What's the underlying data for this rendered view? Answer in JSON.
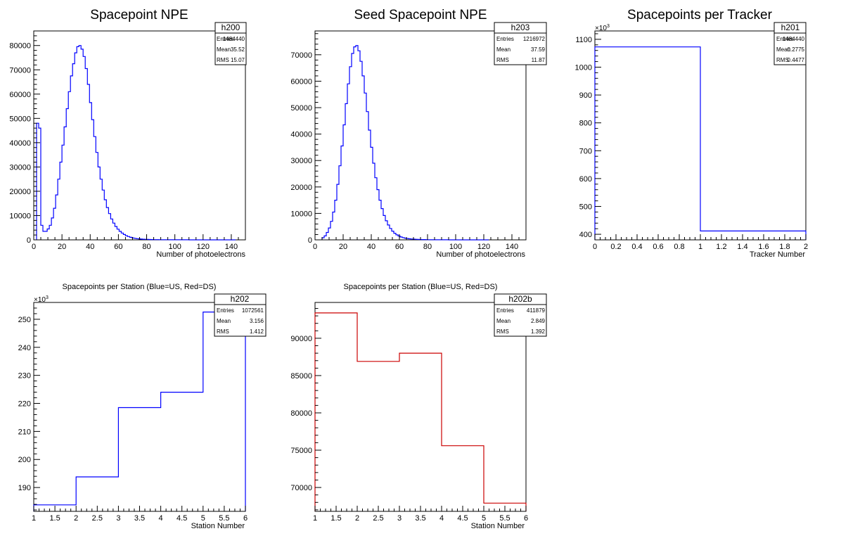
{
  "canvas_background": "#ffffff",
  "chart_data": [
    {
      "type": "bar",
      "style": "step-histogram",
      "title": "Spacepoint NPE",
      "title_size": "large",
      "xlabel": "Number of photoelectrons",
      "ylabel": "",
      "color": "#0000ff",
      "xlim": [
        0,
        150
      ],
      "ylim": [
        0,
        86000
      ],
      "y_exponent": null,
      "grid": false,
      "legend_position": "top-right",
      "x_ticks": [
        0,
        20,
        40,
        60,
        80,
        100,
        120,
        140
      ],
      "x_tick_labels": [
        "0",
        "20",
        "40",
        "60",
        "80",
        "100",
        "120",
        "140"
      ],
      "y_ticks": [
        0,
        10000,
        20000,
        30000,
        40000,
        50000,
        60000,
        70000,
        80000
      ],
      "y_tick_labels": [
        "0",
        "10000",
        "20000",
        "30000",
        "40000",
        "50000",
        "60000",
        "70000",
        "80000"
      ],
      "bin_edges_start": 2,
      "bin_width": 1.5,
      "values": [
        48000,
        46000,
        6000,
        3500,
        3500,
        4500,
        6000,
        9000,
        13000,
        18500,
        25000,
        32000,
        39000,
        46500,
        54000,
        61000,
        67500,
        72500,
        77000,
        79500,
        80000,
        78500,
        75500,
        70500,
        64000,
        56500,
        49500,
        42500,
        36000,
        30000,
        25000,
        20500,
        16500,
        13300,
        10800,
        8600,
        6900,
        5500,
        4400,
        3500,
        2800,
        2200,
        1700,
        1350,
        1050,
        800,
        640,
        500,
        400,
        320,
        260,
        220,
        180,
        150,
        120,
        100,
        90,
        80,
        70,
        60,
        55,
        50,
        45,
        40,
        35,
        30,
        28,
        25,
        22,
        20,
        18,
        16,
        14,
        12,
        11,
        10,
        9,
        8,
        7,
        6,
        5,
        5,
        4,
        4,
        3,
        3,
        2,
        2,
        2,
        2,
        1,
        1,
        1,
        1
      ],
      "stats": {
        "name": "h200",
        "rows": [
          {
            "label": "Entries",
            "value": "1484440"
          },
          {
            "label": "Mean",
            "value": "35.52"
          },
          {
            "label": "RMS",
            "value": "15.07"
          }
        ]
      }
    },
    {
      "type": "bar",
      "style": "step-histogram",
      "title": "Seed Spacepoint NPE",
      "title_size": "large",
      "xlabel": "Number of photoelectrons",
      "ylabel": "",
      "color": "#0000ff",
      "xlim": [
        0,
        150
      ],
      "ylim": [
        0,
        79000
      ],
      "y_exponent": null,
      "grid": false,
      "legend_position": "top-right",
      "x_ticks": [
        0,
        20,
        40,
        60,
        80,
        100,
        120,
        140
      ],
      "x_tick_labels": [
        "0",
        "20",
        "40",
        "60",
        "80",
        "100",
        "120",
        "140"
      ],
      "y_ticks": [
        0,
        10000,
        20000,
        30000,
        40000,
        50000,
        60000,
        70000
      ],
      "y_tick_labels": [
        "0",
        "10000",
        "20000",
        "30000",
        "40000",
        "50000",
        "60000",
        "70000"
      ],
      "bin_edges_start": 5,
      "bin_width": 1.5,
      "values": [
        800,
        1500,
        2800,
        4500,
        7000,
        10500,
        15000,
        21000,
        28000,
        35500,
        43500,
        51500,
        59000,
        65500,
        70500,
        73000,
        73500,
        71500,
        67500,
        62000,
        55500,
        48500,
        41500,
        35000,
        29000,
        23500,
        19000,
        15000,
        11800,
        9200,
        7200,
        5600,
        4300,
        3300,
        2500,
        1900,
        1450,
        1100,
        850,
        650,
        500,
        400,
        320,
        260,
        210,
        170,
        140,
        115,
        95,
        80,
        65,
        55,
        45,
        38,
        32,
        27,
        23,
        19,
        16,
        14,
        12,
        10,
        9,
        8,
        7,
        6,
        5,
        4,
        4,
        3,
        3,
        2,
        2,
        2,
        1,
        1,
        1,
        1,
        1
      ],
      "stats": {
        "name": "h203",
        "rows": [
          {
            "label": "Entries",
            "value": "1216972"
          },
          {
            "label": "Mean",
            "value": "37.59"
          },
          {
            "label": "RMS",
            "value": "11.87"
          }
        ]
      }
    },
    {
      "type": "bar",
      "style": "step-histogram",
      "title": "Spacepoints per Tracker",
      "title_size": "large",
      "xlabel": "Tracker Number",
      "ylabel": "",
      "color": "#0000ff",
      "xlim": [
        0,
        2
      ],
      "ylim": [
        380,
        1130
      ],
      "y_exponent": "10^3",
      "grid": false,
      "legend_position": "top-right",
      "x_ticks": [
        0,
        0.2,
        0.4,
        0.6,
        0.8,
        1,
        1.2,
        1.4,
        1.6,
        1.8,
        2
      ],
      "x_tick_labels": [
        "0",
        "0.2",
        "0.4",
        "0.6",
        "0.8",
        "1",
        "1.2",
        "1.4",
        "1.6",
        "1.8",
        "2"
      ],
      "y_ticks": [
        400,
        500,
        600,
        700,
        800,
        900,
        1000,
        1100
      ],
      "y_tick_labels": [
        "400",
        "500",
        "600",
        "700",
        "800",
        "900",
        "1000",
        "1100"
      ],
      "bin_edges": [
        0,
        1,
        2
      ],
      "values": [
        1072.561,
        411.879
      ],
      "stats": {
        "name": "h201",
        "rows": [
          {
            "label": "Entries",
            "value": "1484440"
          },
          {
            "label": "Mean",
            "value": "0.2775"
          },
          {
            "label": "RMS",
            "value": "0.4477"
          }
        ]
      }
    },
    {
      "type": "bar",
      "style": "step-histogram",
      "title": "Spacepoints per Station (Blue=US, Red=DS)",
      "title_size": "small",
      "xlabel": "Station Number",
      "ylabel": "",
      "color": "#0000ff",
      "xlim": [
        1,
        6
      ],
      "ylim": [
        181.5,
        256
      ],
      "y_exponent": "10^3",
      "grid": false,
      "legend_position": "top-right",
      "x_ticks": [
        1,
        1.5,
        2,
        2.5,
        3,
        3.5,
        4,
        4.5,
        5,
        5.5,
        6
      ],
      "x_tick_labels": [
        "1",
        "1.5",
        "2",
        "2.5",
        "3",
        "3.5",
        "4",
        "4.5",
        "5",
        "5.5",
        "6"
      ],
      "y_ticks": [
        190,
        200,
        210,
        220,
        230,
        240,
        250
      ],
      "y_tick_labels": [
        "190",
        "200",
        "210",
        "220",
        "230",
        "240",
        "250"
      ],
      "bin_edges": [
        1,
        2,
        3,
        4,
        5,
        6
      ],
      "values": [
        183.8,
        193.8,
        218.5,
        224.0,
        252.6
      ],
      "stats": {
        "name": "h202",
        "rows": [
          {
            "label": "Entries",
            "value": "1072561"
          },
          {
            "label": "Mean",
            "value": "3.156"
          },
          {
            "label": "RMS",
            "value": "1.412"
          }
        ]
      }
    },
    {
      "type": "bar",
      "style": "step-histogram",
      "title": "Spacepoints per Station (Blue=US, Red=DS)",
      "title_size": "small",
      "xlabel": "Station Number",
      "ylabel": "",
      "color": "#cc0000",
      "xlim": [
        1,
        6
      ],
      "ylim": [
        66800,
        94800
      ],
      "y_exponent": null,
      "grid": false,
      "legend_position": "top-right",
      "x_ticks": [
        1,
        1.5,
        2,
        2.5,
        3,
        3.5,
        4,
        4.5,
        5,
        5.5,
        6
      ],
      "x_tick_labels": [
        "1",
        "1.5",
        "2",
        "2.5",
        "3",
        "3.5",
        "4",
        "4.5",
        "5",
        "5.5",
        "6"
      ],
      "y_ticks": [
        70000,
        75000,
        80000,
        85000,
        90000
      ],
      "y_tick_labels": [
        "70000",
        "75000",
        "80000",
        "85000",
        "90000"
      ],
      "bin_edges": [
        1,
        2,
        3,
        4,
        5,
        6
      ],
      "values": [
        93400,
        86900,
        88000,
        75600,
        67900
      ],
      "stats": {
        "name": "h202b",
        "rows": [
          {
            "label": "Entries",
            "value": "411879"
          },
          {
            "label": "Mean",
            "value": "2.849"
          },
          {
            "label": "RMS",
            "value": "1.392"
          }
        ]
      }
    }
  ]
}
